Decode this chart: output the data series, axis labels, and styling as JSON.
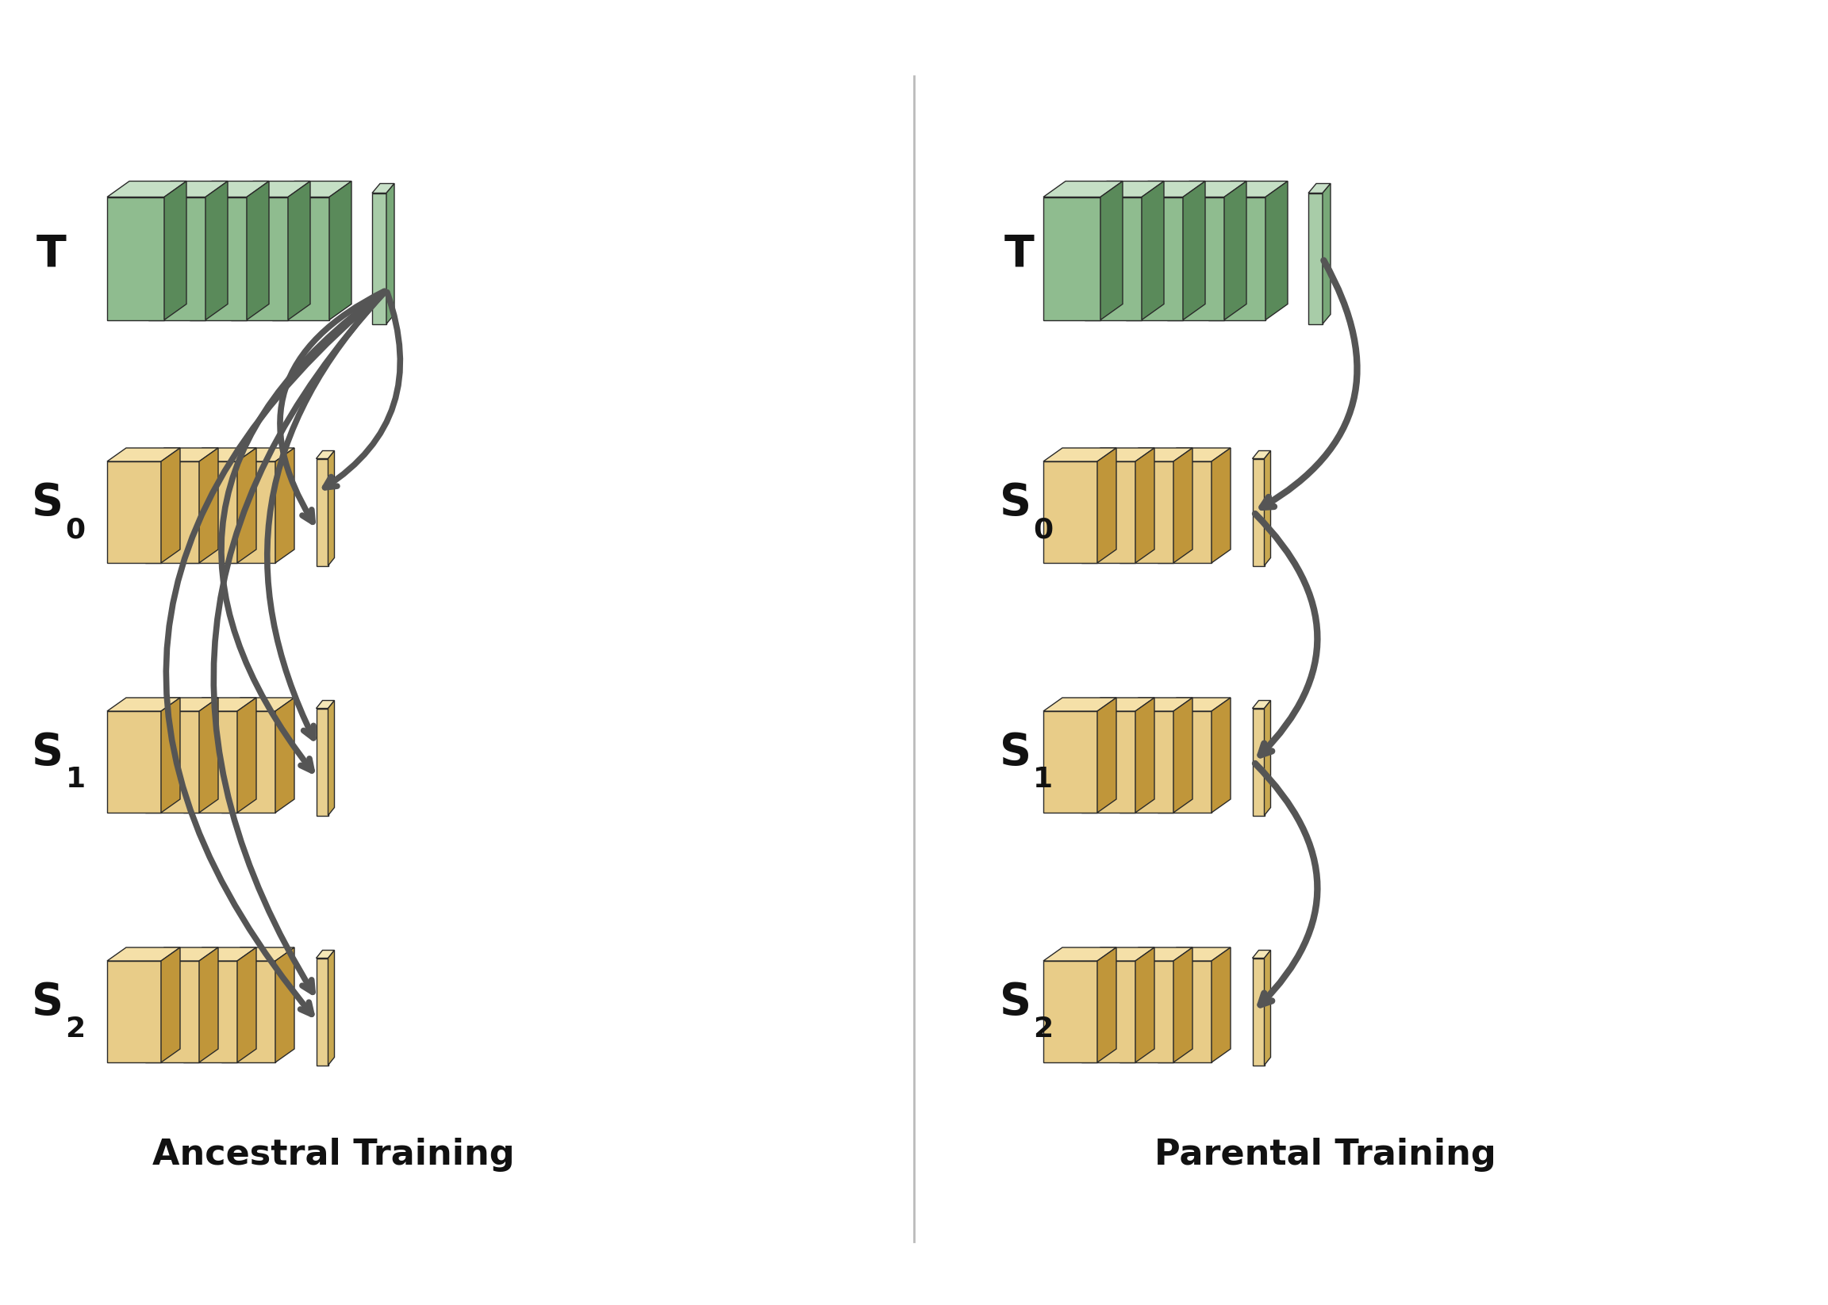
{
  "fig_width": 23.04,
  "fig_height": 16.46,
  "bg_color": "#ffffff",
  "green_face": "#8fbc8f",
  "green_top": "#c5dfc5",
  "green_side": "#5a8a5a",
  "yellow_face": "#e8cc88",
  "yellow_top": "#f5e0a8",
  "yellow_side": "#c0963a",
  "bar_green_face": "#a8cca8",
  "bar_green_top": "#c8e0c8",
  "bar_green_side": "#78a878",
  "bar_yellow_face": "#e8d090",
  "bar_yellow_top": "#f5e8b8",
  "bar_yellow_side": "#c8a850",
  "arrow_color": "#555555",
  "divider_color": "#bbbbbb",
  "text_color": "#111111",
  "title_ancestral": "Ancestral Training",
  "title_parental": "Parental Training",
  "label_T": "T",
  "label_S": "S",
  "sub_0": "0",
  "sub_1": "1",
  "sub_2": "2"
}
